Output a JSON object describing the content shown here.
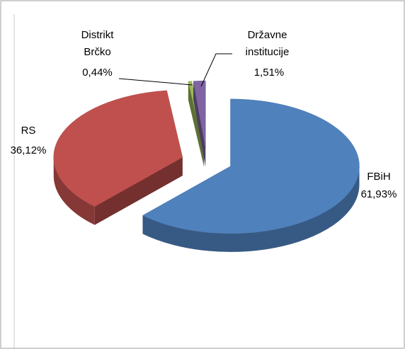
{
  "chart_data": {
    "type": "pie",
    "categories": [
      "FBiH",
      "RS",
      "Distrikt Brčko",
      "Državne institucije"
    ],
    "values": [
      61.93,
      36.12,
      0.44,
      1.51
    ],
    "value_labels": [
      "61,93%",
      "36,12%",
      "0,44%",
      "1,51%"
    ],
    "colors": [
      "#4f81bd",
      "#c0504d",
      "#9bbb59",
      "#8064a2"
    ]
  }
}
